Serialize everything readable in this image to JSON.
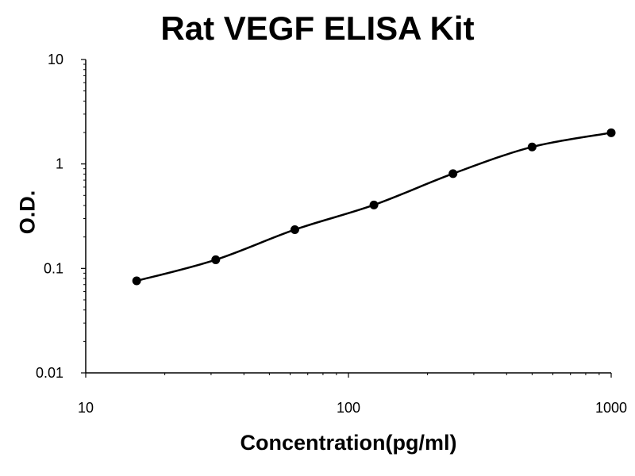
{
  "chart_data": {
    "type": "scatter",
    "title": "Rat VEGF ELISA Kit",
    "xlabel": "Concentration(pg/ml)",
    "ylabel": "O.D.",
    "x_scale": "log",
    "y_scale": "log",
    "xlim": [
      10,
      1000
    ],
    "ylim": [
      0.01,
      10
    ],
    "x_ticks": [
      10,
      100,
      1000
    ],
    "x_tick_labels": [
      "10",
      "100",
      "1000"
    ],
    "y_ticks": [
      0.01,
      0.1,
      1,
      10
    ],
    "y_tick_labels": [
      "0.01",
      "0.1",
      "1",
      "10"
    ],
    "grid": false,
    "series": [
      {
        "x": [
          15.625,
          31.25,
          62.5,
          125,
          250,
          500,
          1000
        ],
        "y": [
          0.076,
          0.121,
          0.235,
          0.405,
          0.808,
          1.455,
          1.99
        ]
      }
    ],
    "fit_curve": true,
    "colors": {
      "line": "#000000",
      "point": "#000000",
      "axis": "#000000"
    }
  }
}
